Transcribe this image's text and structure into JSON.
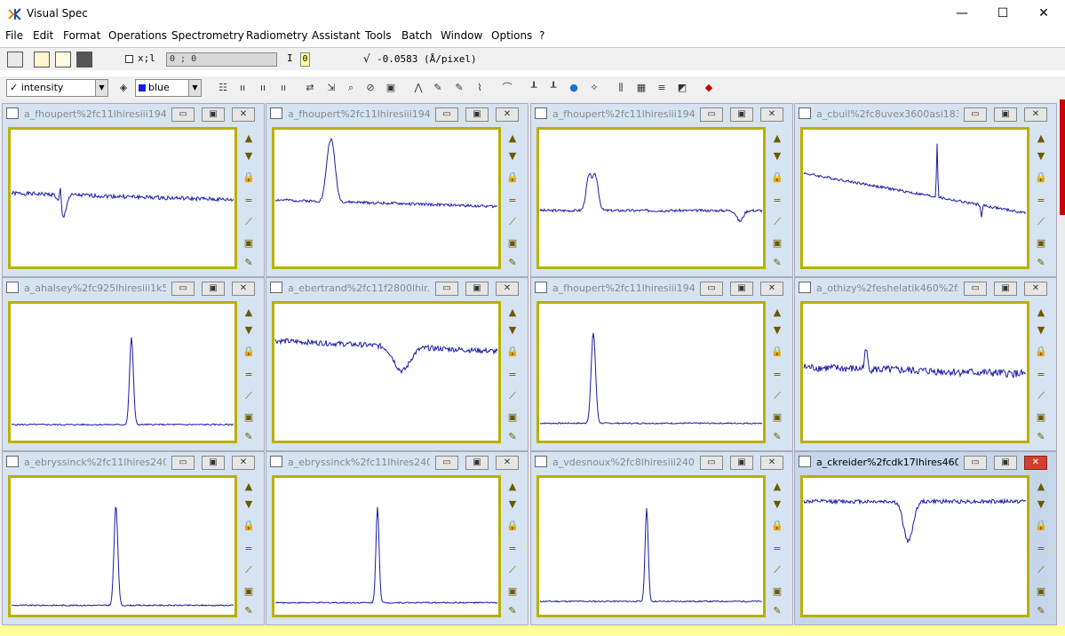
{
  "app": {
    "title": "Visual Spec",
    "min_glyph": "—",
    "max_glyph": "☐",
    "close_glyph": "✕"
  },
  "menu": [
    "File",
    "Edit",
    "Format",
    "Operations",
    "Spectrometry",
    "Radiometry",
    "Assistant",
    "Tools",
    "Batch",
    "Window",
    "Options",
    "?"
  ],
  "toolbar1": {
    "xy_label": "x;l",
    "xy_value": "0 ; 0",
    "i_label": "I",
    "i_value": "0",
    "dispersion_icon": "√",
    "dispersion": "-0.0583 (Å/pixel)"
  },
  "toolbar2": {
    "mode": "intensity",
    "color": "blue",
    "check_glyph": "✓",
    "dropdown_glyph": "▼"
  },
  "window_buttons": {
    "minimize": "▭",
    "restore": "▣",
    "close": "✕"
  },
  "side_tool_glyphs": [
    "▲",
    "▼",
    "🔒",
    "=",
    "⟋",
    "▣",
    "✎"
  ],
  "windows": [
    {
      "title": "a_fhoupert%2fc11lhiresiii194...",
      "profile": "abs-early",
      "active": false
    },
    {
      "title": "a_fhoupert%2fc11lhiresiii194...",
      "profile": "double-peak-left",
      "active": false
    },
    {
      "title": "a_fhoupert%2fc11lhiresiii194...",
      "profile": "double-peak-mid",
      "active": false
    },
    {
      "title": "a_cbuil%2fc8uvex3600asi183...",
      "profile": "slope-spike",
      "active": false
    },
    {
      "title": "a_ahalsey%2fc925lhiresiii1k5...",
      "profile": "peak-center",
      "active": false
    },
    {
      "title": "a_ebertrand%2fc11f2800lhir...",
      "profile": "abs-dip",
      "active": false
    },
    {
      "title": "a_fhoupert%2fc11lhiresiii194...",
      "profile": "peak-left",
      "active": false
    },
    {
      "title": "a_othizy%2feshelatik460%2f...",
      "profile": "noisy",
      "active": false
    },
    {
      "title": "a_ebryssinck%2fc11lhires240...",
      "profile": "peak-left2",
      "active": false
    },
    {
      "title": "a_ebryssinck%2fc11lhires240...",
      "profile": "peak-mid",
      "active": false
    },
    {
      "title": "a_vdesnoux%2fc8lhiresiii240...",
      "profile": "peak-right",
      "active": false
    },
    {
      "title": "a_ckreider%2fcdk17lhires460...",
      "profile": "abs-dip2",
      "active": true
    }
  ],
  "colors": {
    "plot_line": "#1a1aa8",
    "frame": "#b8b000",
    "mdi_bg": "#eaecf0"
  }
}
